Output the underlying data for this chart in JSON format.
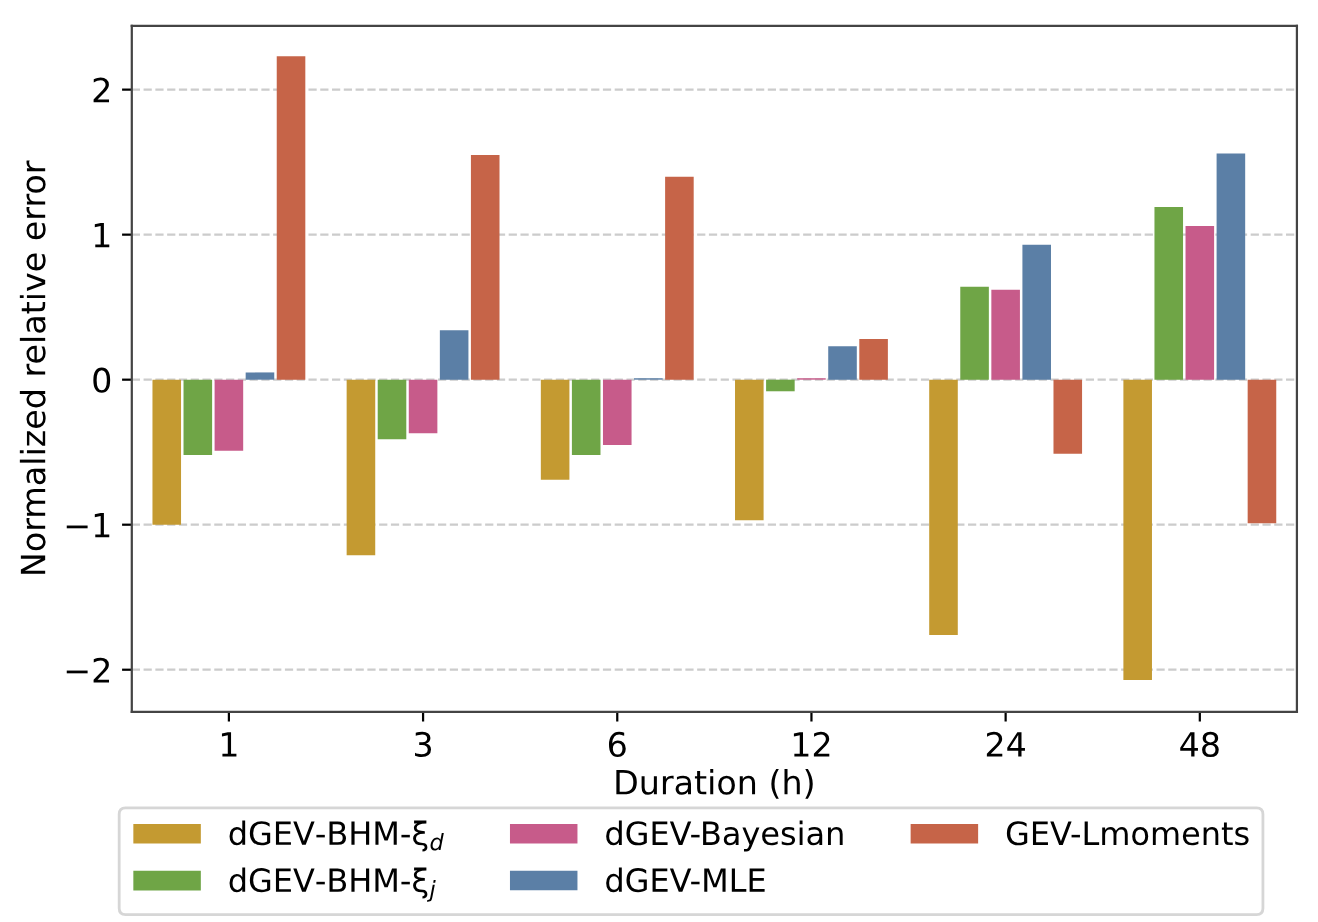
{
  "chart_data": {
    "type": "bar",
    "xlabel": "Duration (h)",
    "ylabel": "Normalized relative error",
    "categories": [
      "1",
      "3",
      "6",
      "12",
      "24",
      "48"
    ],
    "series": [
      {
        "name": "dGEV-BHM-ξ$_{d}$",
        "color": "#c49a31",
        "values": [
          -1.0,
          -1.21,
          -0.69,
          -0.97,
          -1.76,
          -2.07
        ]
      },
      {
        "name": "dGEV-BHM-ξ$_{j}$",
        "color": "#6fa546",
        "values": [
          -0.52,
          -0.41,
          -0.52,
          -0.08,
          0.64,
          1.19
        ]
      },
      {
        "name": "dGEV-Bayesian",
        "color": "#c75b8a",
        "values": [
          -0.49,
          -0.37,
          -0.45,
          0.01,
          0.62,
          1.06
        ]
      },
      {
        "name": "dGEV-MLE",
        "color": "#5b7fa6",
        "values": [
          0.05,
          0.34,
          0.01,
          0.23,
          0.93,
          1.56
        ]
      },
      {
        "name": "GEV-Lmoments",
        "color": "#c66448",
        "values": [
          2.23,
          1.55,
          1.4,
          0.28,
          -0.51,
          -0.99
        ]
      }
    ],
    "ylim": [
      -2.29,
      2.44
    ],
    "yticks": [
      -2,
      -1,
      0,
      1,
      2
    ],
    "grid": "y",
    "legend": "bottom"
  }
}
